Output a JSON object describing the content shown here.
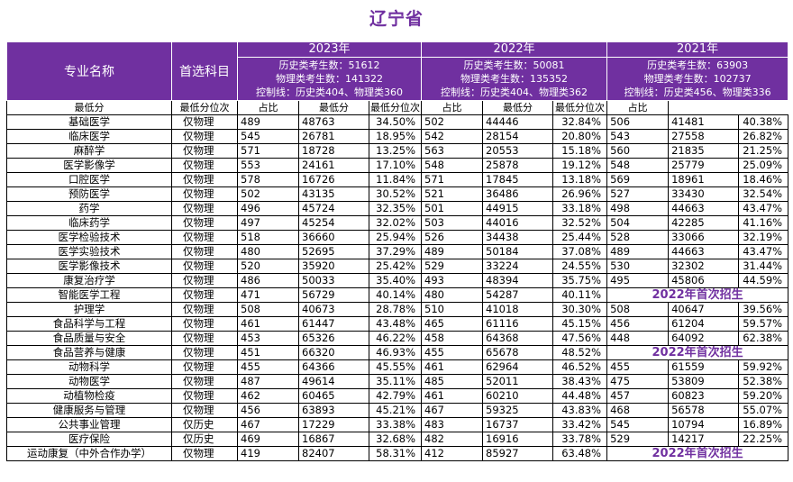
{
  "title": "辽宁省",
  "header": {
    "major_col": "专业名称",
    "subject_col": "首选科目",
    "sub_cols": [
      "最低分",
      "最低分位次",
      "占比"
    ],
    "years": [
      {
        "year": "2023年",
        "stats": [
          "历史类考生数：51612",
          "物理类考生数：141322",
          "控制线：历史类404、物理类360"
        ]
      },
      {
        "year": "2022年",
        "stats": [
          "历史类考生数：50081",
          "物理类考生数：135352",
          "控制线：历史类404、物理类362"
        ]
      },
      {
        "year": "2021年",
        "stats": [
          "历史类考生数：63903",
          "物理类考生数：102737",
          "控制线：历史类456、物理类336"
        ]
      }
    ]
  },
  "rows": [
    {
      "major": "基础医学",
      "subject": "仅物理",
      "y2023": [
        "489",
        "48763",
        "34.50%"
      ],
      "y2022": [
        "502",
        "44446",
        "32.84%"
      ],
      "y2021": [
        "506",
        "41481",
        "40.38%"
      ]
    },
    {
      "major": "临床医学",
      "subject": "仅物理",
      "y2023": [
        "545",
        "26781",
        "18.95%"
      ],
      "y2022": [
        "542",
        "28154",
        "20.80%"
      ],
      "y2021": [
        "543",
        "27558",
        "26.82%"
      ]
    },
    {
      "major": "麻醉学",
      "subject": "仅物理",
      "y2023": [
        "571",
        "18728",
        "13.25%"
      ],
      "y2022": [
        "563",
        "20553",
        "15.18%"
      ],
      "y2021": [
        "560",
        "21835",
        "21.25%"
      ]
    },
    {
      "major": "医学影像学",
      "subject": "仅物理",
      "y2023": [
        "553",
        "24161",
        "17.10%"
      ],
      "y2022": [
        "548",
        "25878",
        "19.12%"
      ],
      "y2021": [
        "548",
        "25779",
        "25.09%"
      ]
    },
    {
      "major": "口腔医学",
      "subject": "仅物理",
      "y2023": [
        "578",
        "16726",
        "11.84%"
      ],
      "y2022": [
        "571",
        "17845",
        "13.18%"
      ],
      "y2021": [
        "569",
        "18961",
        "18.46%"
      ]
    },
    {
      "major": "预防医学",
      "subject": "仅物理",
      "y2023": [
        "502",
        "43135",
        "30.52%"
      ],
      "y2022": [
        "521",
        "36486",
        "26.96%"
      ],
      "y2021": [
        "527",
        "33430",
        "32.54%"
      ]
    },
    {
      "major": "药学",
      "subject": "仅物理",
      "y2023": [
        "496",
        "45724",
        "32.35%"
      ],
      "y2022": [
        "501",
        "44915",
        "33.18%"
      ],
      "y2021": [
        "498",
        "44663",
        "43.47%"
      ]
    },
    {
      "major": "临床药学",
      "subject": "仅物理",
      "y2023": [
        "497",
        "45254",
        "32.02%"
      ],
      "y2022": [
        "503",
        "44016",
        "32.52%"
      ],
      "y2021": [
        "504",
        "42285",
        "41.16%"
      ]
    },
    {
      "major": "医学检验技术",
      "subject": "仅物理",
      "y2023": [
        "518",
        "36660",
        "25.94%"
      ],
      "y2022": [
        "526",
        "34438",
        "25.44%"
      ],
      "y2021": [
        "528",
        "33066",
        "32.19%"
      ]
    },
    {
      "major": "医学实验技术",
      "subject": "仅物理",
      "y2023": [
        "480",
        "52695",
        "37.29%"
      ],
      "y2022": [
        "489",
        "50184",
        "37.08%"
      ],
      "y2021": [
        "489",
        "44663",
        "43.47%"
      ]
    },
    {
      "major": "医学影像技术",
      "subject": "仅物理",
      "y2023": [
        "520",
        "35920",
        "25.42%"
      ],
      "y2022": [
        "529",
        "33224",
        "24.55%"
      ],
      "y2021": [
        "530",
        "32302",
        "31.44%"
      ]
    },
    {
      "major": "康复治疗学",
      "subject": "仅物理",
      "y2023": [
        "486",
        "50033",
        "35.40%"
      ],
      "y2022": [
        "493",
        "48394",
        "35.75%"
      ],
      "y2021": [
        "495",
        "45806",
        "44.59%"
      ]
    },
    {
      "major": "智能医学工程",
      "subject": "仅物理",
      "y2023": [
        "471",
        "56729",
        "40.14%"
      ],
      "y2022": [
        "480",
        "54287",
        "40.11%"
      ],
      "note2021": "2022年首次招生"
    },
    {
      "major": "护理学",
      "subject": "仅物理",
      "y2023": [
        "508",
        "40673",
        "28.78%"
      ],
      "y2022": [
        "510",
        "41018",
        "30.30%"
      ],
      "y2021": [
        "508",
        "40647",
        "39.56%"
      ]
    },
    {
      "major": "食品科学与工程",
      "subject": "仅物理",
      "y2023": [
        "461",
        "61447",
        "43.48%"
      ],
      "y2022": [
        "465",
        "61116",
        "45.15%"
      ],
      "y2021": [
        "456",
        "61204",
        "59.57%"
      ]
    },
    {
      "major": "食品质量与安全",
      "subject": "仅物理",
      "y2023": [
        "453",
        "65326",
        "46.22%"
      ],
      "y2022": [
        "458",
        "64368",
        "47.56%"
      ],
      "y2021": [
        "448",
        "64092",
        "62.38%"
      ]
    },
    {
      "major": "食品营养与健康",
      "subject": "仅物理",
      "y2023": [
        "451",
        "66320",
        "46.93%"
      ],
      "y2022": [
        "455",
        "65678",
        "48.52%"
      ],
      "note2021": "2022年首次招生"
    },
    {
      "major": "动物科学",
      "subject": "仅物理",
      "y2023": [
        "455",
        "64366",
        "45.55%"
      ],
      "y2022": [
        "461",
        "62964",
        "46.52%"
      ],
      "y2021": [
        "455",
        "61559",
        "59.92%"
      ]
    },
    {
      "major": "动物医学",
      "subject": "仅物理",
      "y2023": [
        "487",
        "49614",
        "35.11%"
      ],
      "y2022": [
        "485",
        "52011",
        "38.43%"
      ],
      "y2021": [
        "475",
        "53809",
        "52.38%"
      ]
    },
    {
      "major": "动植物检疫",
      "subject": "仅物理",
      "y2023": [
        "462",
        "60465",
        "42.79%"
      ],
      "y2022": [
        "461",
        "60210",
        "44.48%"
      ],
      "y2021": [
        "457",
        "60823",
        "59.20%"
      ]
    },
    {
      "major": "健康服务与管理",
      "subject": "仅物理",
      "y2023": [
        "456",
        "63893",
        "45.21%"
      ],
      "y2022": [
        "467",
        "59325",
        "43.83%"
      ],
      "y2021": [
        "468",
        "56578",
        "55.07%"
      ]
    },
    {
      "major": "公共事业管理",
      "subject": "仅历史",
      "y2023": [
        "467",
        "17229",
        "33.38%"
      ],
      "y2022": [
        "483",
        "16737",
        "33.42%"
      ],
      "y2021": [
        "545",
        "10794",
        "16.89%"
      ]
    },
    {
      "major": "医疗保险",
      "subject": "仅历史",
      "y2023": [
        "469",
        "16867",
        "32.68%"
      ],
      "y2022": [
        "482",
        "16916",
        "33.78%"
      ],
      "y2021": [
        "529",
        "14217",
        "22.25%"
      ]
    },
    {
      "major": "运动康复（中外合作办学）",
      "subject": "仅物理",
      "y2023": [
        "419",
        "82407",
        "58.31%"
      ],
      "y2022": [
        "412",
        "85927",
        "63.48%"
      ],
      "note2021": "2022年首次招生"
    }
  ],
  "colors": {
    "header_bg": "#7030a0",
    "title": "#7030a0",
    "note": "#7030a0"
  }
}
